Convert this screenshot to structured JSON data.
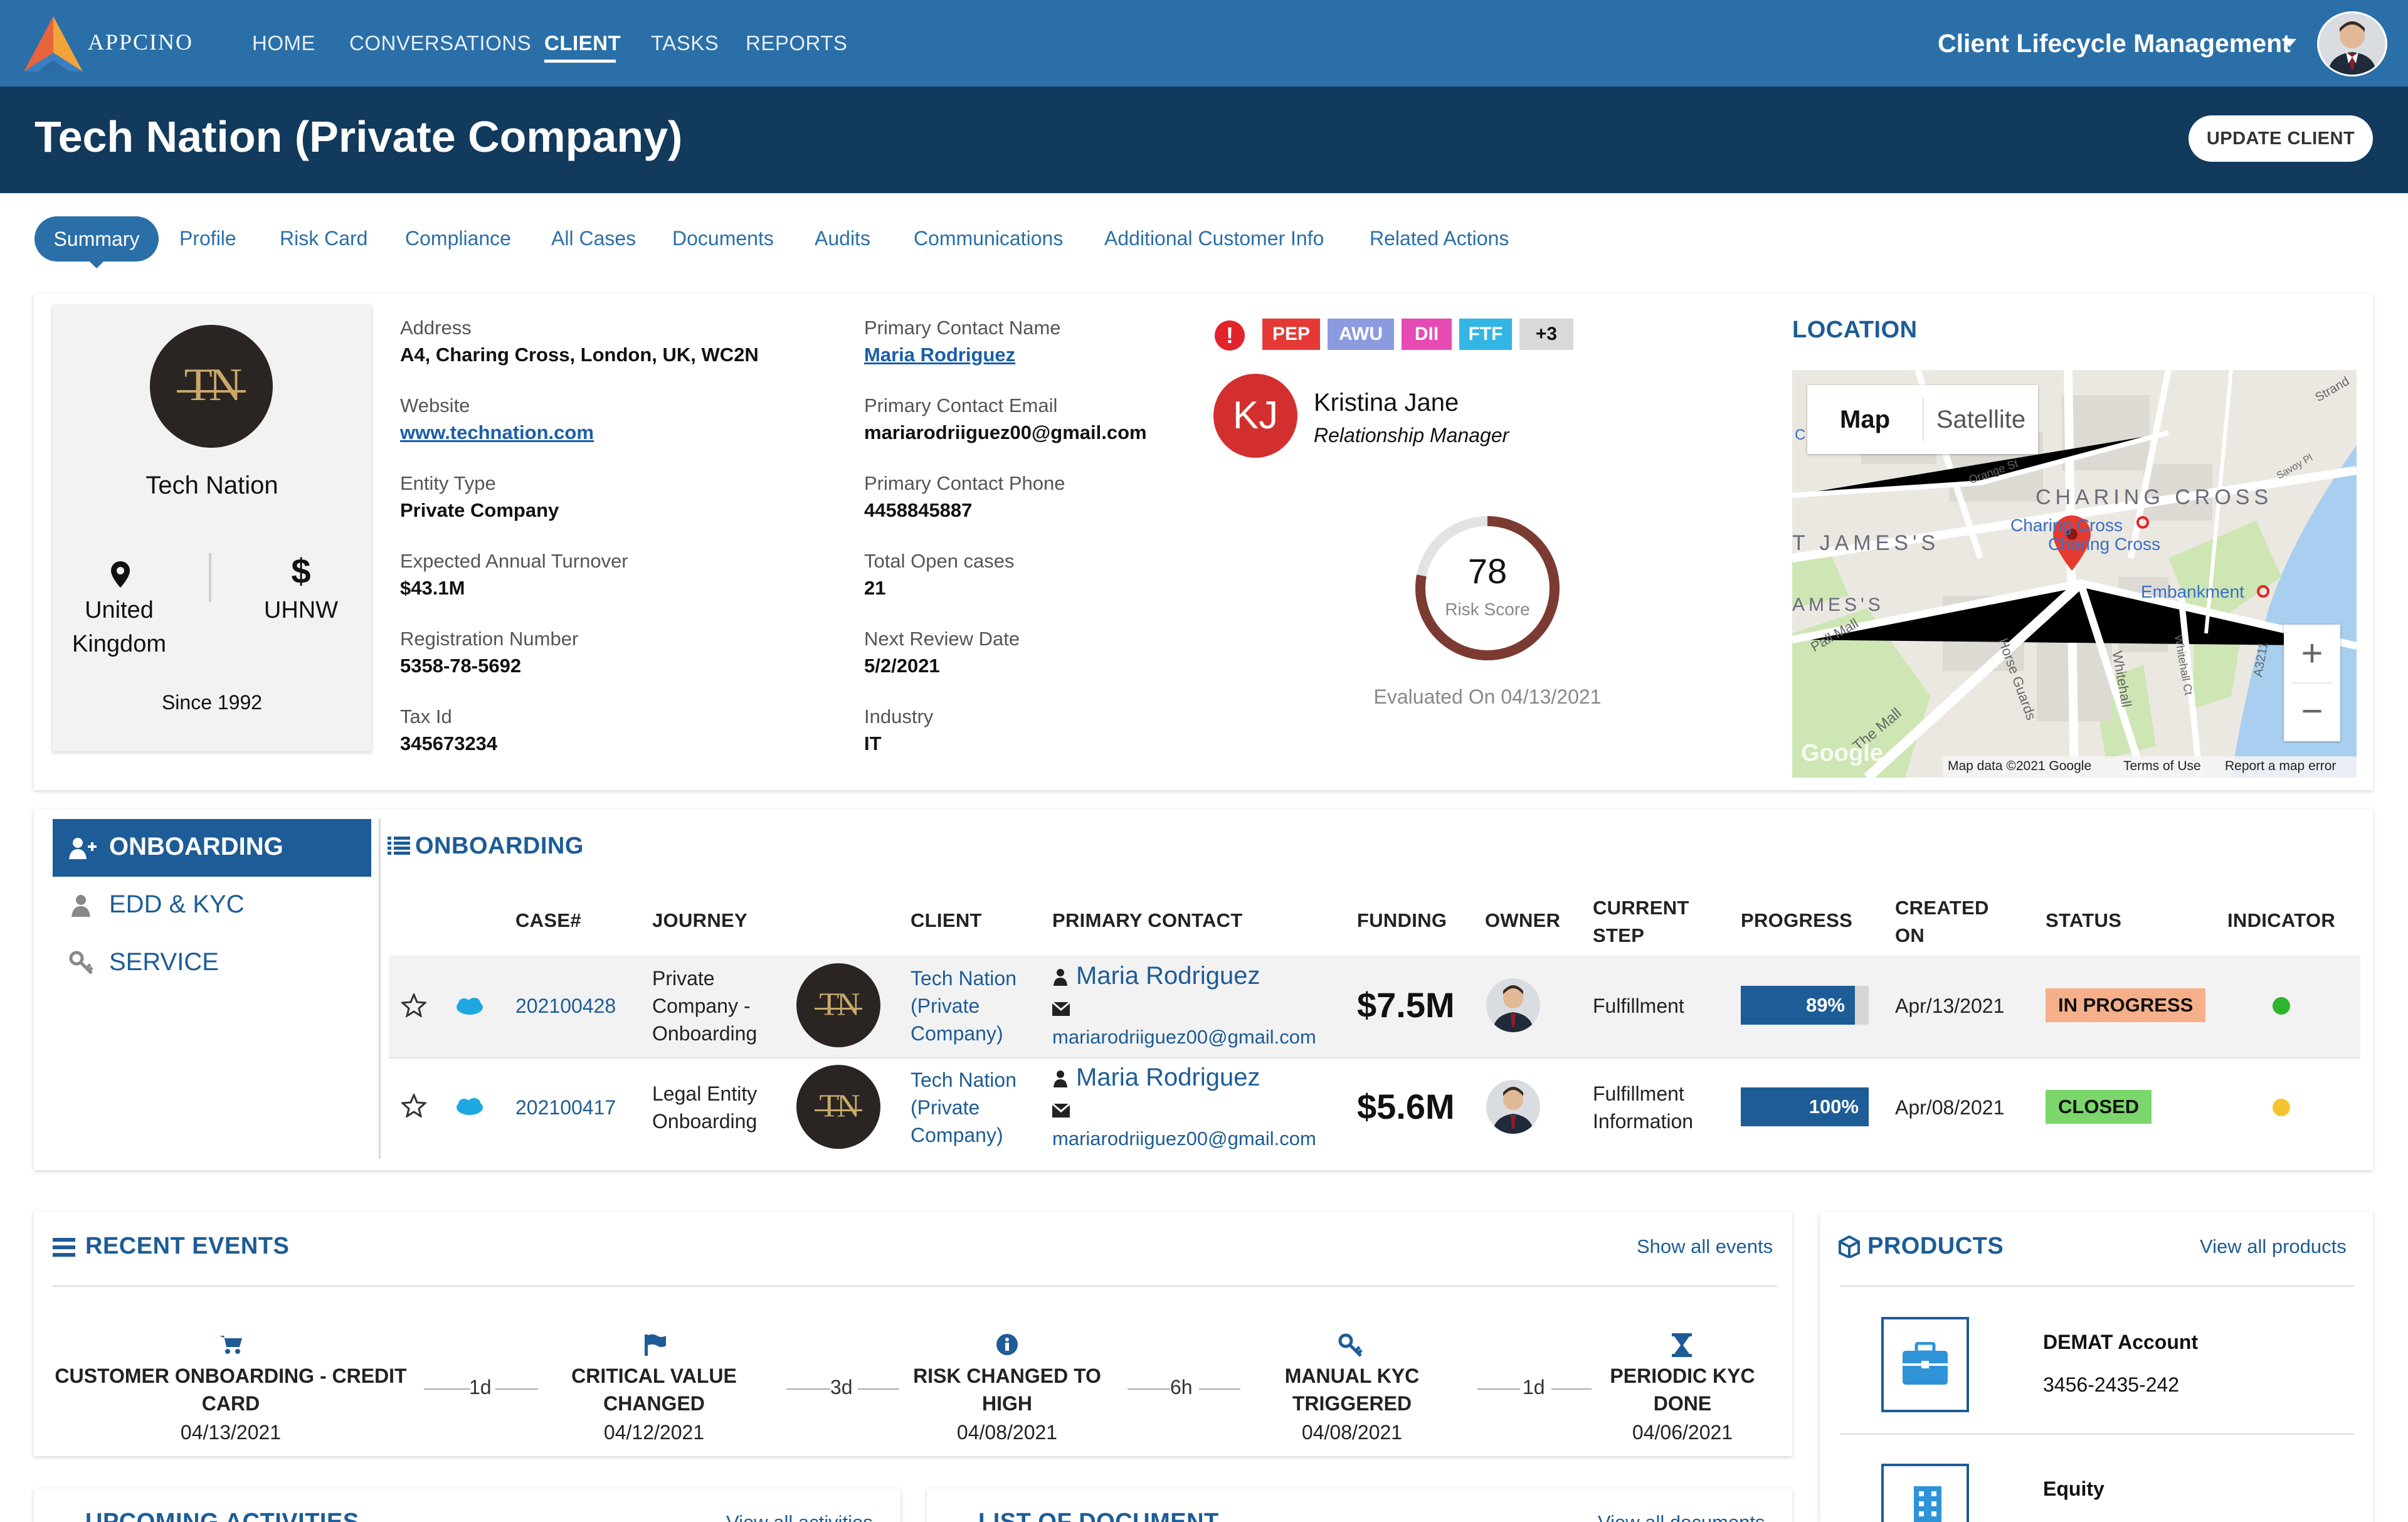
{
  "app": {
    "logo_text": "APPCINO",
    "nav": [
      "HOME",
      "CONVERSATIONS",
      "CLIENT",
      "TASKS",
      "REPORTS"
    ],
    "active_nav": "CLIENT",
    "module": "Client Lifecycle Management"
  },
  "page": {
    "title": "Tech Nation (Private Company)",
    "update_button": "UPDATE CLIENT"
  },
  "tabs": [
    "Summary",
    "Profile",
    "Risk Card",
    "Compliance",
    "All Cases",
    "Documents",
    "Audits",
    "Communications",
    "Additional Customer Info",
    "Related Actions"
  ],
  "client": {
    "logo_initials": "TN",
    "name": "Tech Nation",
    "country": "United Kingdom",
    "country_line1": "United",
    "country_line2": "Kingdom",
    "segment_symbol": "$",
    "segment": "UHNW",
    "since": "Since 1992"
  },
  "details": {
    "address_label": "Address",
    "address": "A4, Charing Cross, London, UK, WC2N",
    "website_label": "Website",
    "website": "www.technation.com",
    "entity_type_label": "Entity Type",
    "entity_type": "Private Company",
    "turnover_label": "Expected Annual Turnover",
    "turnover": "$43.1M",
    "registration_label": "Registration Number",
    "registration": "5358-78-5692",
    "tax_label": "Tax Id",
    "tax": "345673234",
    "contact_name_label": "Primary Contact Name",
    "contact_name": "Maria Rodriguez",
    "contact_email_label": "Primary Contact Email",
    "contact_email": "mariarodriiguez00@gmail.com",
    "contact_phone_label": "Primary Contact Phone",
    "contact_phone": "4458845887",
    "open_cases_label": "Total Open cases",
    "open_cases": "21",
    "next_review_label": "Next Review Date",
    "next_review": "5/2/2021",
    "industry_label": "Industry",
    "industry": "IT"
  },
  "flags": {
    "alert_symbol": "!",
    "items": [
      {
        "label": "PEP",
        "color": "#e53935"
      },
      {
        "label": "AWU",
        "color": "#8c9be0"
      },
      {
        "label": "DII",
        "color": "#e64bb4"
      },
      {
        "label": "FTF",
        "color": "#33b5e5"
      },
      {
        "label": "+3",
        "color": "#d9d9d9"
      }
    ]
  },
  "manager": {
    "initials": "KJ",
    "name": "Kristina Jane",
    "role": "Relationship Manager",
    "avatar_color": "#d32f2f"
  },
  "risk": {
    "score": "78",
    "score_value": 78,
    "label": "Risk Score",
    "evaluated": "Evaluated On 04/13/2021",
    "ring_color": "#7b3b33"
  },
  "location": {
    "title": "LOCATION",
    "map_tab": "Map",
    "satellite_tab": "Satellite",
    "labels": {
      "charing_cross": "CHARING CROSS",
      "st_james": "T JAMES'S",
      "james": "AMES'S",
      "charing_station1": "Charing Cross",
      "charing_station2": "Charing Cross",
      "embankment": "Embankment",
      "pall_mall": "Pall Mall",
      "the_mall": "The Mall",
      "horse_guards": "Horse Guards",
      "whitehall": "Whitehall",
      "orange_st": "Orange St",
      "strand": "Strand",
      "google": "Google",
      "left_c": "C",
      "a3211": "A3211",
      "savoy": "Savoy Pl",
      "whitehall_ct": "Whitehall Ct"
    },
    "zoom_in": "+",
    "zoom_out": "−",
    "footer": [
      "Map data ©2021 Google",
      "Terms of Use",
      "Report a map error"
    ]
  },
  "onboarding": {
    "side_items": [
      {
        "label": "ONBOARDING",
        "icon": "user-plus-icon"
      },
      {
        "label": "EDD & KYC",
        "icon": "person-icon"
      },
      {
        "label": "SERVICE",
        "icon": "key-icon"
      }
    ],
    "title": "ONBOARDING",
    "columns": [
      "CASE#",
      "JOURNEY",
      "CLIENT",
      "PRIMARY CONTACT",
      "FUNDING",
      "OWNER",
      "CURRENT STEP",
      "PROGRESS",
      "CREATED ON",
      "STATUS",
      "INDICATOR"
    ],
    "col_current_1": "CURRENT",
    "col_current_2": "STEP",
    "col_created_1": "CREATED",
    "col_created_2": "ON",
    "rows": [
      {
        "case": "202100428",
        "journey1": "Private",
        "journey2": "Company -",
        "journey3": "Onboarding",
        "client1": "Tech Nation",
        "client2": "(Private",
        "client3": "Company)",
        "contact": "Maria Rodriguez",
        "email": "mariarodriiguez00@gmail.com",
        "funding": "$7.5M",
        "step1": "Fulfillment",
        "step2": "",
        "progress": "89%",
        "progress_value": 89,
        "created": "Apr/13/2021",
        "status": "IN PROGRESS",
        "status_color": "#f5b08a",
        "indicator_color": "#2db52d"
      },
      {
        "case": "202100417",
        "journey1": "Legal Entity",
        "journey2": "Onboarding",
        "journey3": "",
        "client1": "Tech Nation",
        "client2": "(Private",
        "client3": "Company)",
        "contact": "Maria Rodriguez",
        "email": "mariarodriiguez00@gmail.com",
        "funding": "$5.6M",
        "step1": "Fulfillment",
        "step2": "Information",
        "progress": "100%",
        "progress_value": 100,
        "created": "Apr/08/2021",
        "status": "CLOSED",
        "status_color": "#7bd66b",
        "indicator_color": "#f4c531"
      }
    ]
  },
  "events": {
    "title": "RECENT EVENTS",
    "show_all": "Show all events",
    "items": [
      {
        "icon": "cart-icon",
        "title1": "CUSTOMER ONBOARDING - CREDIT",
        "title2": "CARD",
        "date": "04/13/2021"
      },
      {
        "icon": "flag-icon",
        "title1": "CRITICAL VALUE",
        "title2": "CHANGED",
        "date": "04/12/2021"
      },
      {
        "icon": "info-icon",
        "title1": "RISK CHANGED TO",
        "title2": "HIGH",
        "date": "04/08/2021"
      },
      {
        "icon": "key-icon",
        "title1": "MANUAL KYC",
        "title2": "TRIGGERED",
        "date": "04/08/2021"
      },
      {
        "icon": "hourglass-icon",
        "title1": "PERIODIC KYC",
        "title2": "DONE",
        "date": "04/06/2021"
      }
    ],
    "gaps": [
      "1d",
      "3d",
      "6h",
      "1d"
    ]
  },
  "products": {
    "title": "PRODUCTS",
    "view_all": "View all products",
    "items": [
      {
        "name": "DEMAT Account",
        "number": "3456-2435-242",
        "icon": "briefcase-icon"
      },
      {
        "name": "Equity",
        "number": "",
        "icon": "building-icon"
      }
    ]
  },
  "lower": {
    "upcoming_title": "UPCOMING ACTIVITIES",
    "upcoming_link": "View all activities",
    "documents_title": "LIST OF DOCUMENT",
    "documents_link": "View all documents"
  }
}
